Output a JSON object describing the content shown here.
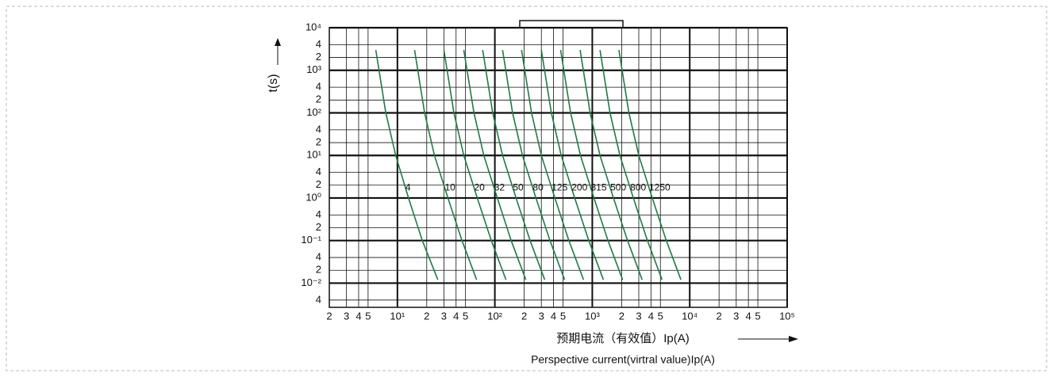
{
  "chart_data": {
    "type": "line",
    "y_label": "t(s)",
    "x_label": "预期电流（有效值）Ip(A)",
    "x_label_en": "Perspective current(virtral value)Ip(A)",
    "xscale": "log",
    "yscale": "log",
    "grid": true,
    "xlim": [
      2,
      100000
    ],
    "ylim": [
      0.0027,
      10000
    ],
    "xticks": [
      2,
      3,
      4,
      5,
      {
        "value": 10,
        "label": "10¹"
      },
      {
        "value": 20,
        "label": "2"
      },
      {
        "value": 30,
        "label": "3"
      },
      {
        "value": 40,
        "label": "4"
      },
      {
        "value": 50,
        "label": "5"
      },
      {
        "value": 100,
        "label": "10²"
      },
      {
        "value": 200,
        "label": "2"
      },
      {
        "value": 300,
        "label": "3"
      },
      {
        "value": 400,
        "label": "4"
      },
      {
        "value": 500,
        "label": "5"
      },
      {
        "value": 1000,
        "label": "10³"
      },
      {
        "value": 2000,
        "label": "2"
      },
      {
        "value": 3000,
        "label": "3"
      },
      {
        "value": 4000,
        "label": "4"
      },
      {
        "value": 5000,
        "label": "5"
      },
      {
        "value": 10000,
        "label": "10⁴"
      },
      {
        "value": 20000,
        "label": "2"
      },
      {
        "value": 30000,
        "label": "3"
      },
      {
        "value": 40000,
        "label": "4"
      },
      {
        "value": 50000,
        "label": "5"
      },
      {
        "value": 100000,
        "label": "10⁵"
      }
    ],
    "yticks": [
      {
        "value": 10000,
        "label": "10⁴"
      },
      {
        "value": 4000,
        "label": "4"
      },
      {
        "value": 2000,
        "label": "2"
      },
      {
        "value": 1000,
        "label": "10³"
      },
      {
        "value": 400,
        "label": "4"
      },
      {
        "value": 200,
        "label": "2"
      },
      {
        "value": 100,
        "label": "10²"
      },
      {
        "value": 40,
        "label": "4"
      },
      {
        "value": 20,
        "label": "2"
      },
      {
        "value": 10,
        "label": "10¹"
      },
      4,
      2,
      {
        "value": 1,
        "label": "10⁰"
      },
      {
        "value": 0.4,
        "label": "4"
      },
      {
        "value": 0.2,
        "label": "2"
      },
      {
        "value": 0.1,
        "label": "10⁻¹"
      },
      {
        "value": 0.04,
        "label": "4"
      },
      {
        "value": 0.02,
        "label": "2"
      },
      {
        "value": 0.01,
        "label": "10⁻²"
      },
      {
        "value": 0.004,
        "label": "4"
      }
    ],
    "series": [
      {
        "name": "4",
        "color": "#1f7a4a",
        "x": [
          6,
          7.6,
          9.6,
          13,
          18,
          26
        ],
        "values": [
          3000,
          100,
          10,
          1,
          0.1,
          0.012
        ]
      },
      {
        "name": "10",
        "color": "#1f7a4a",
        "x": [
          15,
          19,
          24,
          33,
          46,
          65
        ],
        "values": [
          3000,
          100,
          10,
          1,
          0.1,
          0.012
        ]
      },
      {
        "name": "20",
        "color": "#1f7a4a",
        "x": [
          30,
          38,
          48,
          66,
          92,
          130
        ],
        "values": [
          3000,
          100,
          10,
          1,
          0.1,
          0.012
        ]
      },
      {
        "name": "32",
        "color": "#1f7a4a",
        "x": [
          48,
          61,
          77,
          106,
          147,
          208
        ],
        "values": [
          3000,
          100,
          10,
          1,
          0.1,
          0.012
        ]
      },
      {
        "name": "50",
        "color": "#1f7a4a",
        "x": [
          75,
          95,
          120,
          165,
          230,
          325
        ],
        "values": [
          3000,
          100,
          10,
          1,
          0.1,
          0.012
        ]
      },
      {
        "name": "80",
        "color": "#1f7a4a",
        "x": [
          120,
          152,
          192,
          264,
          368,
          520
        ],
        "values": [
          3000,
          100,
          10,
          1,
          0.1,
          0.012
        ]
      },
      {
        "name": "125",
        "color": "#1f7a4a",
        "x": [
          188,
          238,
          300,
          413,
          575,
          813
        ],
        "values": [
          3000,
          100,
          10,
          1,
          0.1,
          0.012
        ]
      },
      {
        "name": "200",
        "color": "#1f7a4a",
        "x": [
          300,
          380,
          480,
          660,
          920,
          1300
        ],
        "values": [
          3000,
          100,
          10,
          1,
          0.1,
          0.012
        ]
      },
      {
        "name": "315",
        "color": "#1f7a4a",
        "x": [
          473,
          599,
          756,
          1040,
          1449,
          2048
        ],
        "values": [
          3000,
          100,
          10,
          1,
          0.1,
          0.012
        ]
      },
      {
        "name": "500",
        "color": "#1f7a4a",
        "x": [
          750,
          950,
          1200,
          1650,
          2300,
          3250
        ],
        "values": [
          3000,
          100,
          10,
          1,
          0.1,
          0.012
        ]
      },
      {
        "name": "800",
        "color": "#1f7a4a",
        "x": [
          1200,
          1520,
          1920,
          2640,
          3680,
          5200
        ],
        "values": [
          3000,
          100,
          10,
          1,
          0.1,
          0.012
        ]
      },
      {
        "name": "1250",
        "color": "#1f7a4a",
        "x": [
          1875,
          2375,
          3000,
          4125,
          5750,
          8125
        ],
        "values": [
          3000,
          100,
          10,
          1,
          0.1,
          0.012
        ]
      }
    ]
  }
}
